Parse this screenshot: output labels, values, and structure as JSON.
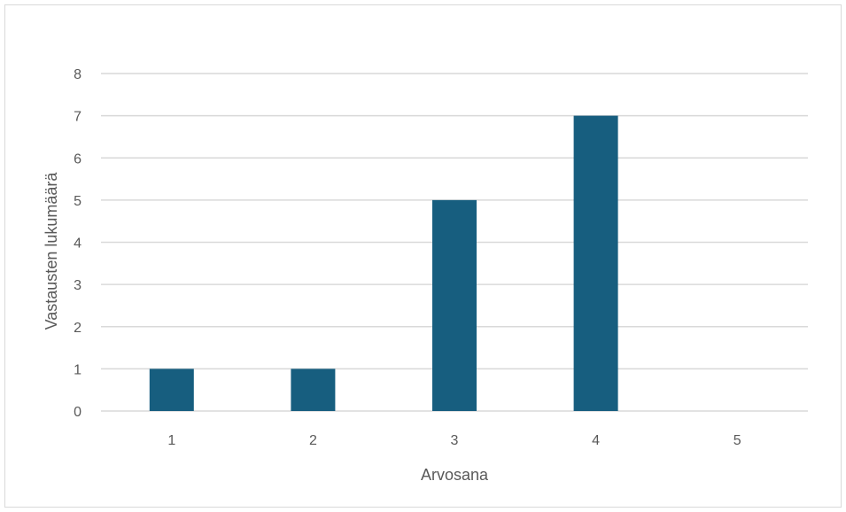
{
  "chart_data": {
    "type": "bar",
    "title": "",
    "xlabel": "Arvosana",
    "ylabel": "Vastausten lukumäärä",
    "categories": [
      "1",
      "2",
      "3",
      "4",
      "5"
    ],
    "values": [
      1,
      1,
      5,
      7,
      0
    ],
    "ylim": [
      0,
      8
    ],
    "yticks": [
      "0",
      "1",
      "2",
      "3",
      "4",
      "5",
      "6",
      "7",
      "8"
    ],
    "grid": true,
    "legend": "none",
    "colors": {
      "bar": "#175e7f",
      "grid": "#d9d9d9",
      "text": "#595959",
      "frame": "#d9d9d9"
    }
  }
}
